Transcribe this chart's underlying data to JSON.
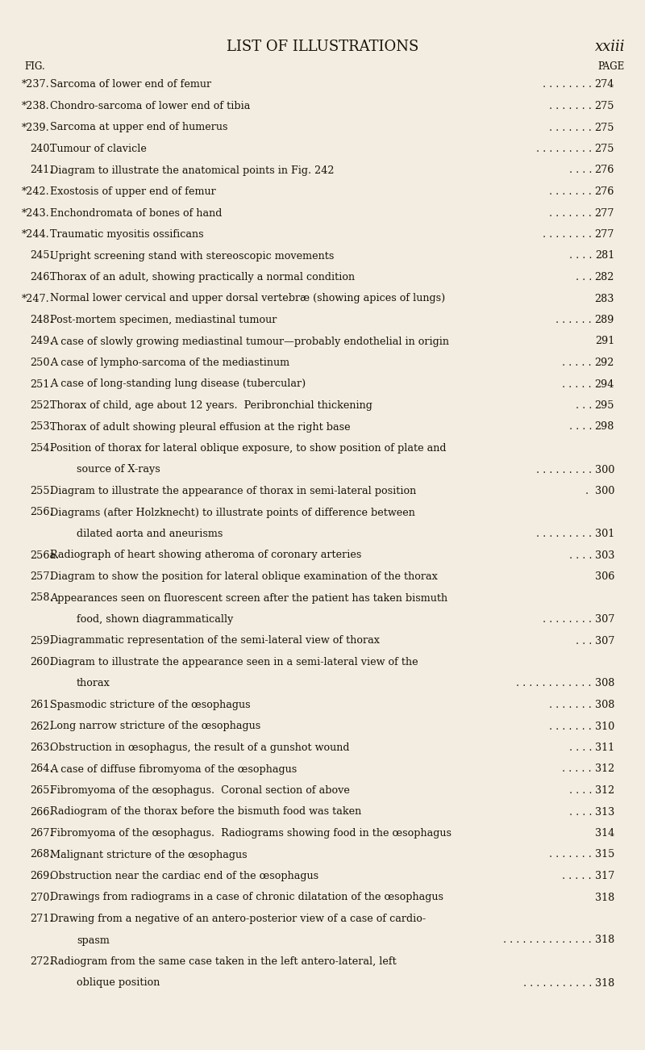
{
  "bg_color": "#f2ede0",
  "text_color": "#1a1008",
  "title": "LIST OF ILLUSTRATIONS",
  "title_right": "xxiii",
  "col_left_label": "FIG.",
  "col_right_label": "PAGE",
  "entries": [
    {
      "fig": "*237.",
      "desc": "Sarcoma of lower end of femur",
      "dots": ". . . . . . . .",
      "page": "274",
      "indent": false,
      "starred": true
    },
    {
      "fig": "*238.",
      "desc": "Chondro-sarcoma of lower end of tibia",
      "dots": ". . . . . . .",
      "page": "275",
      "indent": false,
      "starred": true
    },
    {
      "fig": "*239.",
      "desc": "Sarcoma at upper end of humerus",
      "dots": ". . . . . . .",
      "page": "275",
      "indent": false,
      "starred": true
    },
    {
      "fig": "240.",
      "desc": "Tumour of clavicle",
      "dots": ". . . . . . . . .",
      "page": "275",
      "indent": false,
      "starred": false
    },
    {
      "fig": "241.",
      "desc": "Diagram to illustrate the anatomical points in Fig. 242",
      "dots": ". . . .",
      "page": "276",
      "indent": false,
      "starred": false
    },
    {
      "fig": "*242.",
      "desc": "Exostosis of upper end of femur",
      "dots": ". . . . . . .",
      "page": "276",
      "indent": false,
      "starred": true
    },
    {
      "fig": "*243.",
      "desc": "Enchondromata of bones of hand",
      "dots": ". . . . . . .",
      "page": "277",
      "indent": false,
      "starred": true
    },
    {
      "fig": "*244.",
      "desc": "Traumatic myositis ossificans",
      "dots": ". . . . . . . .",
      "page": "277",
      "indent": false,
      "starred": true
    },
    {
      "fig": "245.",
      "desc": "Upright screening stand with stereoscopic movements",
      "dots": ". . . .",
      "page": "281",
      "indent": false,
      "starred": false
    },
    {
      "fig": "246.",
      "desc": "Thorax of an adult, showing practically a normal condition",
      "dots": ". . .",
      "page": "282",
      "indent": false,
      "starred": false
    },
    {
      "fig": "*247.",
      "desc": "Normal lower cervical and upper dorsal vertebræ (showing apices of lungs)",
      "dots": "",
      "page": "283",
      "indent": false,
      "starred": true
    },
    {
      "fig": "248.",
      "desc": "Post-mortem specimen, mediastinal tumour",
      "dots": ". . . . . .",
      "page": "289",
      "indent": false,
      "starred": false
    },
    {
      "fig": "249.",
      "desc": "A case of slowly growing mediastinal tumour—probably endothelial in origin",
      "dots": "",
      "page": "291",
      "indent": false,
      "starred": false
    },
    {
      "fig": "250.",
      "desc": "A case of lympho-sarcoma of the mediastinum",
      "dots": ". . . . .",
      "page": "292",
      "indent": false,
      "starred": false
    },
    {
      "fig": "251.",
      "desc": "A case of long-standing lung disease (tubercular)",
      "dots": ". . . . .",
      "page": "294",
      "indent": false,
      "starred": false
    },
    {
      "fig": "252.",
      "desc": "Thorax of child, age about 12 years.  Peribronchial thickening",
      "dots": ". . .",
      "page": "295",
      "indent": false,
      "starred": false
    },
    {
      "fig": "253.",
      "desc": "Thorax of adult showing pleural effusion at the right base",
      "dots": ". . . .",
      "page": "298",
      "indent": false,
      "starred": false
    },
    {
      "fig": "254.",
      "desc": "Position of thorax for lateral oblique exposure, to show position of plate and",
      "dots": "",
      "page": "",
      "indent": false,
      "starred": false
    },
    {
      "fig": "",
      "desc": "source of X-rays",
      "dots": ". . . . . . . . .",
      "page": "300",
      "indent": true,
      "starred": false
    },
    {
      "fig": "255.",
      "desc": "Diagram to illustrate the appearance of thorax in semi-lateral position",
      "dots": ". ",
      "page": "300",
      "indent": false,
      "starred": false
    },
    {
      "fig": "256.",
      "desc": "Diagrams (after Holzknecht) to illustrate points of difference between",
      "dots": "",
      "page": "",
      "indent": false,
      "starred": false
    },
    {
      "fig": "",
      "desc": "dilated aorta and aneurisms",
      "dots": ". . . . . . . . .",
      "page": "301",
      "indent": true,
      "starred": false
    },
    {
      "fig": "256a.",
      "desc": "Radiograph of heart showing atheroma of coronary arteries",
      "dots": ". . . .",
      "page": "303",
      "indent": false,
      "starred": false
    },
    {
      "fig": "257.",
      "desc": "Diagram to show the position for lateral oblique examination of the thorax",
      "dots": "",
      "page": "306",
      "indent": false,
      "starred": false
    },
    {
      "fig": "258.",
      "desc": "Appearances seen on fluorescent screen after the patient has taken bismuth",
      "dots": "",
      "page": "",
      "indent": false,
      "starred": false
    },
    {
      "fig": "",
      "desc": "food, shown diagrammatically",
      "dots": ". . . . . . . .",
      "page": "307",
      "indent": true,
      "starred": false
    },
    {
      "fig": "259.",
      "desc": "Diagrammatic representation of the semi-lateral view of thorax",
      "dots": ". . .",
      "page": "307",
      "indent": false,
      "starred": false
    },
    {
      "fig": "260.",
      "desc": "Diagram to illustrate the appearance seen in a semi-lateral view of the",
      "dots": "",
      "page": "",
      "indent": false,
      "starred": false
    },
    {
      "fig": "",
      "desc": "thorax",
      "dots": ". . . . . . . . . . . .",
      "page": "308",
      "indent": true,
      "starred": false
    },
    {
      "fig": "261.",
      "desc": "Spasmodic stricture of the œsophagus",
      "dots": ". . . . . . .",
      "page": "308",
      "indent": false,
      "starred": false
    },
    {
      "fig": "262.",
      "desc": "Long narrow stricture of the œsophagus",
      "dots": ". . . . . . .",
      "page": "310",
      "indent": false,
      "starred": false
    },
    {
      "fig": "263.",
      "desc": "Obstruction in œsophagus, the result of a gunshot wound",
      "dots": ". . . .",
      "page": "311",
      "indent": false,
      "starred": false
    },
    {
      "fig": "264.",
      "desc": "A case of diffuse fibromyoma of the œsophagus",
      "dots": ". . . . .",
      "page": "312",
      "indent": false,
      "starred": false
    },
    {
      "fig": "265.",
      "desc": "Fibromyoma of the œsophagus.  Coronal section of above",
      "dots": ". . . .",
      "page": "312",
      "indent": false,
      "starred": false
    },
    {
      "fig": "266.",
      "desc": "Radiogram of the thorax before the bismuth food was taken",
      "dots": ". . . .",
      "page": "313",
      "indent": false,
      "starred": false
    },
    {
      "fig": "267.",
      "desc": "Fibromyoma of the œsophagus.  Radiograms showing food in the œsophagus",
      "dots": "",
      "page": "314",
      "indent": false,
      "starred": false
    },
    {
      "fig": "268.",
      "desc": "Malignant stricture of the œsophagus",
      "dots": ". . . . . . .",
      "page": "315",
      "indent": false,
      "starred": false
    },
    {
      "fig": "269.",
      "desc": "Obstruction near the cardiac end of the œsophagus",
      "dots": ". . . . .",
      "page": "317",
      "indent": false,
      "starred": false
    },
    {
      "fig": "270.",
      "desc": "Drawings from radiograms in a case of chronic dilatation of the œsophagus",
      "dots": "",
      "page": "318",
      "indent": false,
      "starred": false
    },
    {
      "fig": "271.",
      "desc": "Drawing from a negative of an antero-posterior view of a case of cardio-",
      "dots": "",
      "page": "",
      "indent": false,
      "starred": false
    },
    {
      "fig": "",
      "desc": "spasm",
      "dots": ". . . . . . . . . . . . . .",
      "page": "318",
      "indent": true,
      "starred": false
    },
    {
      "fig": "272.",
      "desc": "Radiogram from the same case taken in the left antero-lateral, left",
      "dots": "",
      "page": "",
      "indent": false,
      "starred": false
    },
    {
      "fig": "",
      "desc": "oblique position",
      "dots": ". . . . . . . . . . .",
      "page": "318",
      "indent": true,
      "starred": false
    }
  ]
}
